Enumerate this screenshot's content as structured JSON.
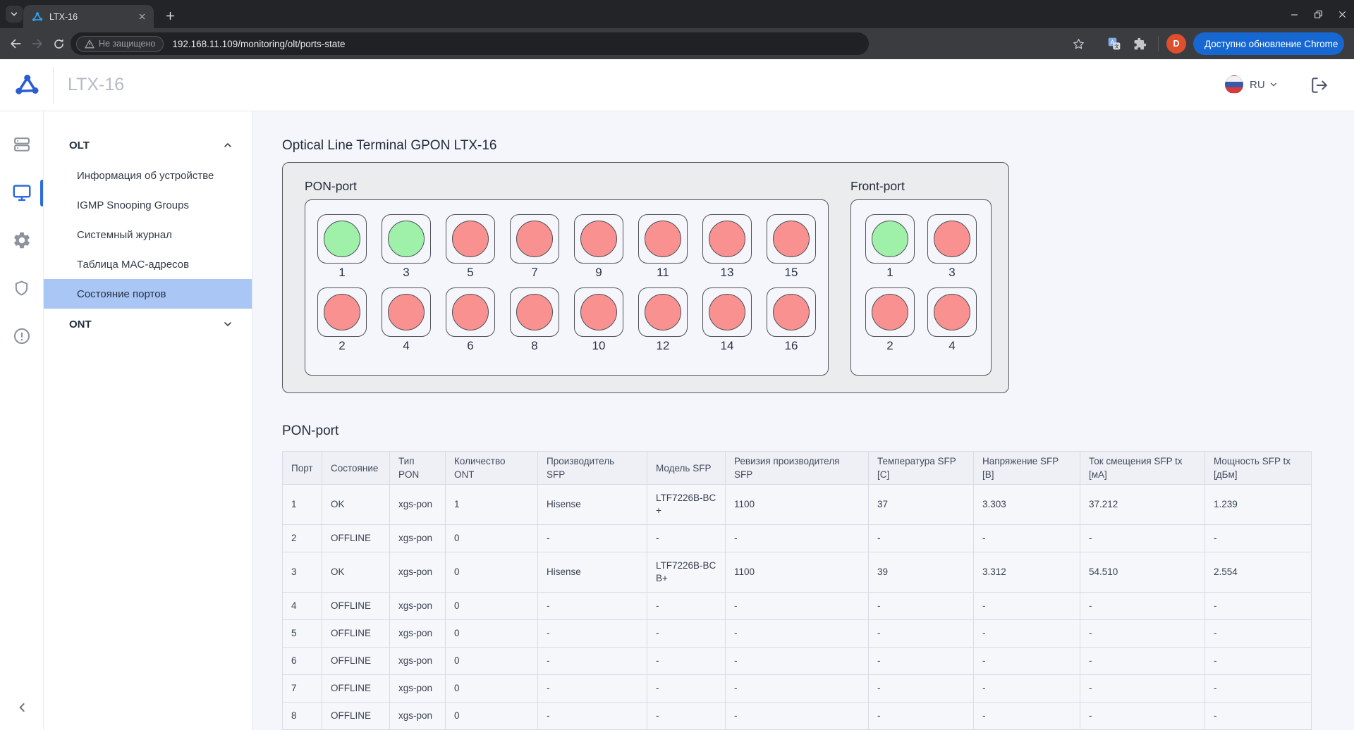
{
  "browser": {
    "tab_title": "LTX-16",
    "security_label": "Не защищено",
    "url": "192.168.11.109/monitoring/olt/ports-state",
    "profile_initial": "D",
    "update_button_label": "Доступно обновление Chrome"
  },
  "app_header": {
    "title": "LTX-16",
    "language": "RU"
  },
  "sidebar": {
    "groups": [
      {
        "label": "OLT",
        "expanded": true,
        "items": [
          {
            "label": "Информация об устройстве",
            "active": false
          },
          {
            "label": "IGMP Snooping Groups",
            "active": false
          },
          {
            "label": "Системный журнал",
            "active": false
          },
          {
            "label": "Таблица MAC-адресов",
            "active": false
          },
          {
            "label": "Состояние портов",
            "active": true
          }
        ]
      },
      {
        "label": "ONT",
        "expanded": false,
        "items": []
      }
    ]
  },
  "main": {
    "page_title": "Optical Line Terminal GPON LTX-16",
    "device_panels": [
      {
        "key": "pon",
        "label": "PON-port",
        "rows": [
          [
            {
              "label": "1",
              "state": "up"
            },
            {
              "label": "3",
              "state": "up"
            },
            {
              "label": "5",
              "state": "down"
            },
            {
              "label": "7",
              "state": "down"
            },
            {
              "label": "9",
              "state": "down"
            },
            {
              "label": "11",
              "state": "down"
            },
            {
              "label": "13",
              "state": "down"
            },
            {
              "label": "15",
              "state": "down"
            }
          ],
          [
            {
              "label": "2",
              "state": "down"
            },
            {
              "label": "4",
              "state": "down"
            },
            {
              "label": "6",
              "state": "down"
            },
            {
              "label": "8",
              "state": "down"
            },
            {
              "label": "10",
              "state": "down"
            },
            {
              "label": "12",
              "state": "down"
            },
            {
              "label": "14",
              "state": "down"
            },
            {
              "label": "16",
              "state": "down"
            }
          ]
        ]
      },
      {
        "key": "front",
        "label": "Front-port",
        "rows": [
          [
            {
              "label": "1",
              "state": "up"
            },
            {
              "label": "3",
              "state": "down"
            }
          ],
          [
            {
              "label": "2",
              "state": "down"
            },
            {
              "label": "4",
              "state": "down"
            }
          ]
        ]
      }
    ],
    "table_section_title": "PON-port",
    "table": {
      "columns": [
        "Порт",
        "Состояние",
        "Тип\nPON",
        "Количество\nONT",
        "Производитель\nSFP",
        "Модель SFP",
        "Ревизия производителя\nSFP",
        "Температура SFP\n[C]",
        "Напряжение SFP\n[B]",
        "Ток смещения SFP tx\n[мА]",
        "Мощность SFP tx\n[дБм]"
      ],
      "rows": [
        [
          "1",
          "OK",
          "xgs-pon",
          "1",
          "Hisense",
          "LTF7226B-BC\n+",
          "1100",
          "37",
          "3.303",
          "37.212",
          "1.239"
        ],
        [
          "2",
          "OFFLINE",
          "xgs-pon",
          "0",
          "-",
          "-",
          "-",
          "-",
          "-",
          "-",
          "-"
        ],
        [
          "3",
          "OK",
          "xgs-pon",
          "0",
          "Hisense",
          "LTF7226B-BC\nB+",
          "1100",
          "39",
          "3.312",
          "54.510",
          "2.554"
        ],
        [
          "4",
          "OFFLINE",
          "xgs-pon",
          "0",
          "-",
          "-",
          "-",
          "-",
          "-",
          "-",
          "-"
        ],
        [
          "5",
          "OFFLINE",
          "xgs-pon",
          "0",
          "-",
          "-",
          "-",
          "-",
          "-",
          "-",
          "-"
        ],
        [
          "6",
          "OFFLINE",
          "xgs-pon",
          "0",
          "-",
          "-",
          "-",
          "-",
          "-",
          "-",
          "-"
        ],
        [
          "7",
          "OFFLINE",
          "xgs-pon",
          "0",
          "-",
          "-",
          "-",
          "-",
          "-",
          "-",
          "-"
        ],
        [
          "8",
          "OFFLINE",
          "xgs-pon",
          "0",
          "-",
          "-",
          "-",
          "-",
          "-",
          "-",
          "-"
        ]
      ]
    }
  },
  "colors": {
    "port_up": "#9ff0a9",
    "port_down": "#f99190",
    "active_menu_bg": "#a9c6f5",
    "accent_blue": "#2d6be1",
    "update_pill": "#1667d2"
  }
}
